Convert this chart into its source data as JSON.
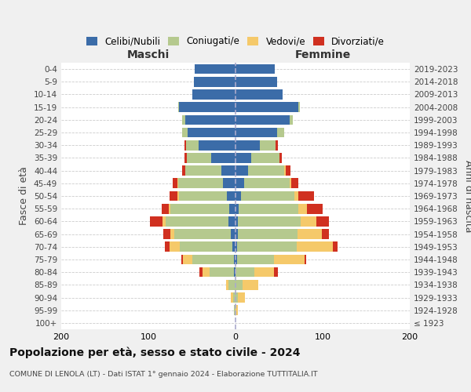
{
  "age_groups": [
    "100+",
    "95-99",
    "90-94",
    "85-89",
    "80-84",
    "75-79",
    "70-74",
    "65-69",
    "60-64",
    "55-59",
    "50-54",
    "45-49",
    "40-44",
    "35-39",
    "30-34",
    "25-29",
    "20-24",
    "15-19",
    "10-14",
    "5-9",
    "0-4"
  ],
  "birth_years": [
    "≤ 1923",
    "1924-1928",
    "1929-1933",
    "1934-1938",
    "1939-1943",
    "1944-1948",
    "1949-1953",
    "1954-1958",
    "1959-1963",
    "1964-1968",
    "1969-1973",
    "1974-1978",
    "1979-1983",
    "1984-1988",
    "1989-1993",
    "1994-1998",
    "1999-2003",
    "2004-2008",
    "2009-2013",
    "2014-2018",
    "2019-2023"
  ],
  "male": {
    "celibi": [
      0,
      0,
      0,
      0,
      2,
      2,
      4,
      5,
      8,
      7,
      10,
      14,
      16,
      28,
      42,
      55,
      58,
      65,
      50,
      48,
      47
    ],
    "coniugati": [
      0,
      2,
      3,
      8,
      28,
      48,
      60,
      65,
      72,
      68,
      55,
      52,
      42,
      28,
      15,
      6,
      3,
      1,
      0,
      0,
      0
    ],
    "vedovi": [
      0,
      0,
      2,
      3,
      8,
      10,
      12,
      5,
      4,
      2,
      2,
      1,
      0,
      0,
      0,
      0,
      0,
      0,
      0,
      0,
      0
    ],
    "divorziati": [
      0,
      0,
      0,
      0,
      3,
      2,
      5,
      8,
      14,
      8,
      9,
      5,
      3,
      3,
      2,
      0,
      0,
      0,
      0,
      0,
      0
    ]
  },
  "female": {
    "nubili": [
      0,
      0,
      0,
      0,
      0,
      2,
      2,
      3,
      3,
      4,
      6,
      10,
      14,
      18,
      28,
      48,
      62,
      72,
      54,
      48,
      45
    ],
    "coniugate": [
      0,
      0,
      3,
      8,
      22,
      42,
      68,
      68,
      72,
      68,
      62,
      52,
      42,
      32,
      18,
      8,
      4,
      2,
      0,
      0,
      0
    ],
    "vedove": [
      0,
      3,
      8,
      18,
      22,
      35,
      42,
      28,
      18,
      10,
      4,
      2,
      2,
      0,
      0,
      0,
      0,
      0,
      0,
      0,
      0
    ],
    "divorziate": [
      0,
      0,
      0,
      0,
      5,
      2,
      5,
      8,
      14,
      18,
      18,
      8,
      5,
      3,
      3,
      0,
      0,
      0,
      0,
      0,
      0
    ]
  },
  "colors": {
    "celibi": "#3b6ca8",
    "coniugati": "#b5c98e",
    "vedovi": "#f5c96a",
    "divorziati": "#d03020"
  },
  "title": "Popolazione per età, sesso e stato civile - 2024",
  "subtitle": "COMUNE DI LENOLA (LT) - Dati ISTAT 1° gennaio 2024 - Elaborazione TUTTITALIA.IT",
  "xlabel_left": "Maschi",
  "xlabel_right": "Femmine",
  "ylabel": "Fasce di età",
  "ylabel_right": "Anni di nascita",
  "xlim": 200,
  "bg_color": "#f0f0f0",
  "plot_bg": "#ffffff",
  "legend_labels": [
    "Celibi/Nubili",
    "Coniugati/e",
    "Vedovi/e",
    "Divorziati/e"
  ]
}
